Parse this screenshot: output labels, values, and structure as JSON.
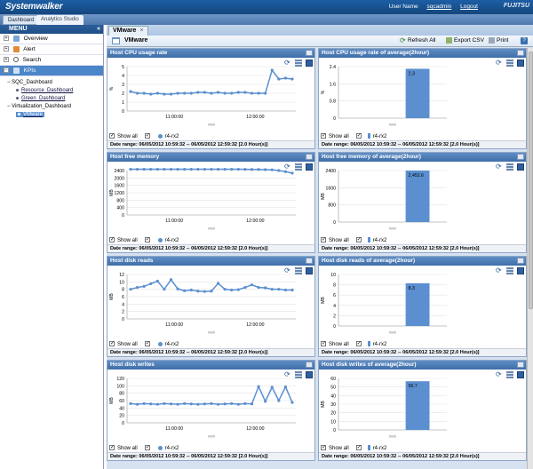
{
  "app": {
    "brand": "Systemwalker",
    "user_label": "User Name",
    "user_name": "sqcadmin",
    "logout": "Logout",
    "vendor": "FUJITSU"
  },
  "tabs": [
    "Dashboard",
    "Analytics Studio"
  ],
  "menu": {
    "title": "MENU",
    "collapse_icon": "double-chevron-left",
    "items": [
      {
        "label": "Overview",
        "icon": "overview-icon"
      },
      {
        "label": "Alert",
        "icon": "alert-icon"
      },
      {
        "label": "Search",
        "icon": "search-icon"
      },
      {
        "label": "KPIs",
        "icon": "kpi-icon"
      }
    ],
    "tree": {
      "group1": "SQC_Dashboard",
      "group1_items": [
        "Resource_Dashboard",
        "Green_Dashboard"
      ],
      "group2": "Virtualization_Dashboard",
      "group2_items": [
        "VMware"
      ]
    }
  },
  "main": {
    "tab_label": "VMware",
    "panel_title": "VMware",
    "toolbar": {
      "refresh": "Refresh All",
      "export": "Export CSV",
      "print": "Print"
    }
  },
  "common": {
    "show_all": "Show all",
    "series_name": "r4-rx2",
    "date_range": "Date range:  06/05/2012 10:59:32 -- 06/05/2012 12:59:32 [2.0 Hour(s)]",
    "series_color": "#5b8fd0"
  },
  "chart_data": [
    {
      "type": "line",
      "title": "Host CPU usage rate",
      "ylabel": "%",
      "ylim": [
        0,
        5
      ],
      "yticks": [
        "5",
        "4",
        "3",
        "2",
        "1",
        "0"
      ],
      "xticks": [
        "11:00:00",
        "12:00:00"
      ],
      "series": [
        {
          "name": "r4-rx2",
          "values": [
            2.2,
            2.0,
            2.0,
            1.9,
            2.0,
            1.9,
            1.9,
            2.0,
            2.0,
            2.0,
            2.1,
            2.1,
            2.0,
            2.1,
            2.0,
            2.0,
            2.1,
            2.1,
            2.0,
            2.0,
            2.0,
            4.6,
            3.6,
            3.7,
            3.6
          ]
        }
      ]
    },
    {
      "type": "bar",
      "title": "Host CPU usage rate of average(2hour)",
      "ylabel": "%",
      "ylim": [
        0,
        2.4
      ],
      "yticks": [
        "2.4",
        "1.6",
        "0.8",
        "0"
      ],
      "categories": [
        "r4-rx2"
      ],
      "values": [
        2.3
      ],
      "data_labels": [
        "2.3"
      ]
    },
    {
      "type": "line",
      "title": "Host free memory",
      "ylabel": "MB",
      "ylim": [
        0,
        2400
      ],
      "yticks": [
        "2400",
        "2000",
        "1600",
        "1200",
        "800",
        "400",
        "0"
      ],
      "xticks": [
        "11:00:00",
        "12:00:00"
      ],
      "series": [
        {
          "name": "r4-rx2",
          "values": [
            2470,
            2470,
            2470,
            2470,
            2470,
            2470,
            2470,
            2470,
            2470,
            2470,
            2470,
            2470,
            2470,
            2470,
            2470,
            2470,
            2470,
            2465,
            2460,
            2460,
            2450,
            2440,
            2400,
            2340,
            2260
          ]
        }
      ]
    },
    {
      "type": "bar",
      "title": "Host free memory of average(2hour)",
      "ylabel": "MB",
      "ylim": [
        0,
        2400
      ],
      "yticks": [
        "2400",
        "1600",
        "800",
        "0"
      ],
      "categories": [
        "r4-rx2"
      ],
      "values": [
        2452.6
      ],
      "data_labels": [
        "2,452.6"
      ]
    },
    {
      "type": "line",
      "title": "Host disk reads",
      "ylabel": "MB",
      "ylim": [
        0,
        12
      ],
      "yticks": [
        "12",
        "10",
        "8",
        "6",
        "4",
        "2",
        "0"
      ],
      "xticks": [
        "11:00:00",
        "12:00:00"
      ],
      "series": [
        {
          "name": "r4-rx2",
          "values": [
            8.0,
            8.5,
            8.8,
            9.5,
            10.2,
            8.0,
            10.6,
            8.1,
            7.6,
            7.8,
            7.5,
            7.4,
            7.5,
            9.6,
            8.0,
            7.8,
            7.9,
            8.5,
            9.2,
            8.5,
            8.4,
            8.0,
            8.0,
            7.8,
            7.8
          ]
        }
      ]
    },
    {
      "type": "bar",
      "title": "Host disk reads of average(2hour)",
      "ylabel": "MB",
      "ylim": [
        0,
        10
      ],
      "yticks": [
        "10",
        "8",
        "6",
        "4",
        "2",
        "0"
      ],
      "categories": [
        "r4-rx2"
      ],
      "values": [
        8.3
      ],
      "data_labels": [
        "8.3"
      ]
    },
    {
      "type": "line",
      "title": "Host disk writes",
      "ylabel": "MB",
      "ylim": [
        0,
        120
      ],
      "yticks": [
        "120",
        "100",
        "80",
        "60",
        "40",
        "20",
        "0"
      ],
      "xticks": [
        "11:00:00",
        "12:00:00"
      ],
      "series": [
        {
          "name": "r4-rx2",
          "values": [
            52,
            50,
            52,
            51,
            50,
            52,
            51,
            50,
            52,
            51,
            50,
            51,
            52,
            50,
            51,
            52,
            50,
            52,
            51,
            98,
            58,
            96,
            60,
            97,
            55
          ]
        }
      ]
    },
    {
      "type": "bar",
      "title": "Host disk writes of average(2hour)",
      "ylabel": "MB",
      "ylim": [
        0,
        60
      ],
      "yticks": [
        "60",
        "50",
        "40",
        "30",
        "20",
        "10",
        "0"
      ],
      "categories": [
        "r4-rx2"
      ],
      "values": [
        56.7
      ],
      "data_labels": [
        "56.7"
      ]
    }
  ]
}
